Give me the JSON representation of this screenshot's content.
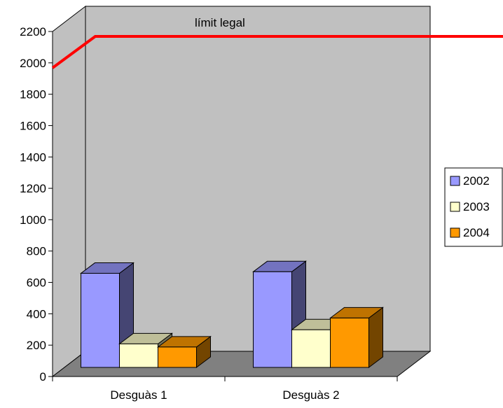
{
  "chart_data": {
    "type": "bar",
    "categories": [
      "Desguàs 1",
      "Desguàs 2"
    ],
    "series": [
      {
        "name": "2002",
        "values": [
          600,
          610
        ],
        "color": "#9999ff"
      },
      {
        "name": "2003",
        "values": [
          150,
          240
        ],
        "color": "#ffffcc"
      },
      {
        "name": "2004",
        "values": [
          130,
          315
        ],
        "color": "#ff9900"
      }
    ],
    "reference_line": {
      "label": "límit legal",
      "value": 2200,
      "color": "#ff0000"
    },
    "yticks": [
      "0",
      "200",
      "400",
      "600",
      "800",
      "1000",
      "1200",
      "1400",
      "1600",
      "1800",
      "2000",
      "2200"
    ],
    "ylim": [
      0,
      2200
    ],
    "legend_position": "right",
    "grid": false,
    "wall_color": "#c0c0c0",
    "floor_color": "#808080"
  }
}
